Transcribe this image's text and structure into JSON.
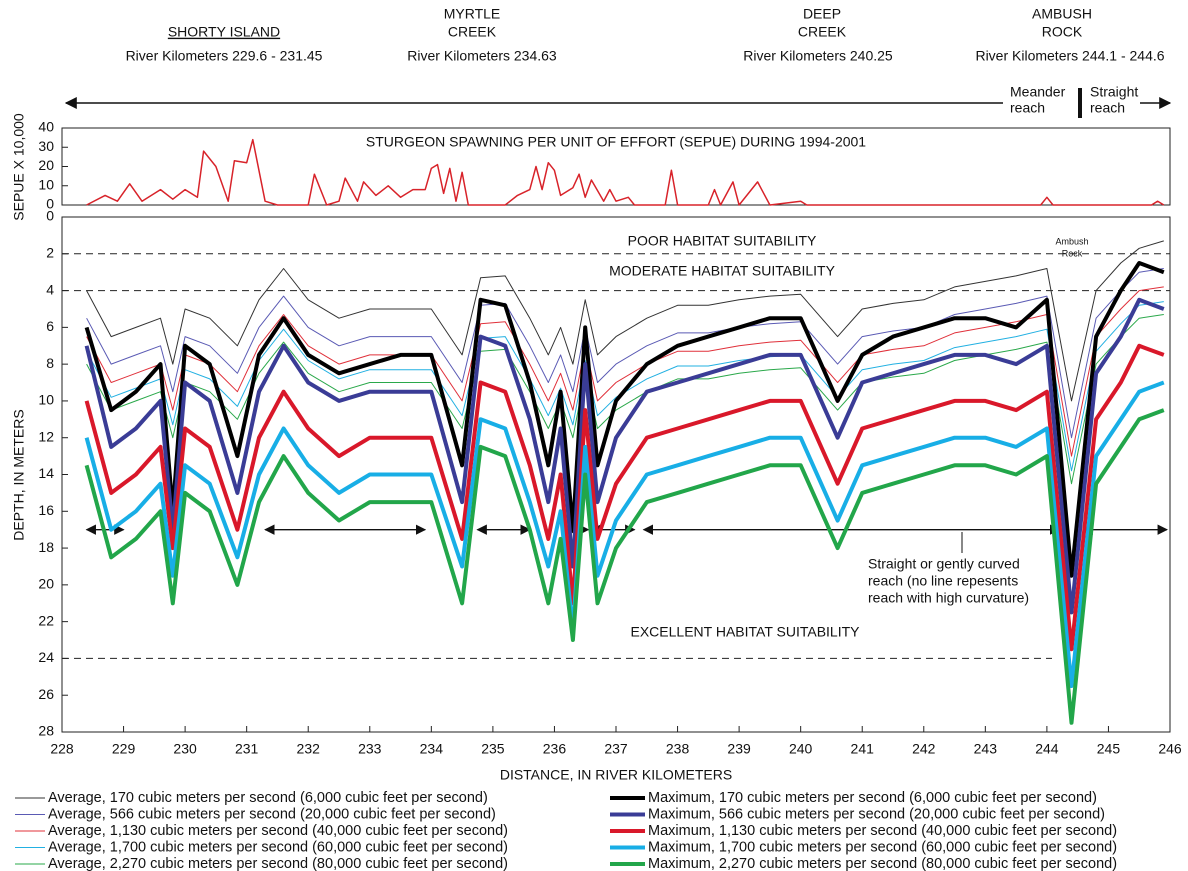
{
  "header": {
    "locations": [
      {
        "name": [
          "SHORTY ISLAND"
        ],
        "range": "River Kilometers 229.6 - 231.45"
      },
      {
        "name": [
          "MYRTLE",
          "CREEK"
        ],
        "range": "River Kilometers 234.63"
      },
      {
        "name": [
          "DEEP",
          "CREEK"
        ],
        "range": "River Kilometers 240.25"
      },
      {
        "name": [
          "AMBUSH",
          "ROCK"
        ],
        "range": "River Kilometers 244.1 - 244.6"
      }
    ],
    "meander": [
      "Meander",
      "reach"
    ],
    "straight": [
      "Straight",
      "reach"
    ]
  },
  "chart_data": [
    {
      "type": "line",
      "title": "STURGEON SPAWNING  PER UNIT OF EFFORT (SEPUE) DURING 1994-2001",
      "y_label": "SEPUE X 10,000",
      "color": "#d8232a",
      "x": [
        228.4,
        228.7,
        228.9,
        229.1,
        229.3,
        229.6,
        229.8,
        230.0,
        230.2,
        230.3,
        230.5,
        230.7,
        230.8,
        231.0,
        231.1,
        231.3,
        231.5,
        232.0,
        232.1,
        232.3,
        232.5,
        232.6,
        232.8,
        232.9,
        233.1,
        233.3,
        233.5,
        233.7,
        233.9,
        234.0,
        234.1,
        234.2,
        234.3,
        234.4,
        234.5,
        234.6,
        235.2,
        235.4,
        235.6,
        235.7,
        235.8,
        235.9,
        236.0,
        236.1,
        236.3,
        236.4,
        236.5,
        236.6,
        236.8,
        236.9,
        237.0,
        237.2,
        237.3,
        237.8,
        237.9,
        238.0,
        238.5,
        238.6,
        238.7,
        238.9,
        239.0,
        239.3,
        239.5,
        240.0,
        240.1,
        243.9,
        244.0,
        244.1,
        245.7,
        245.8,
        245.9
      ],
      "values": [
        0,
        5,
        2,
        11,
        2,
        8,
        3,
        8,
        4,
        28,
        20,
        2,
        23,
        22,
        34,
        2,
        0,
        0,
        16,
        0,
        2,
        14,
        2,
        12,
        5,
        10,
        4,
        8,
        8,
        19,
        21,
        6,
        19,
        2,
        17,
        0,
        0,
        5,
        8,
        20,
        8,
        22,
        18,
        5,
        9,
        16,
        4,
        13,
        2,
        8,
        2,
        4,
        0,
        0,
        18,
        0,
        0,
        8,
        0,
        12,
        0,
        12,
        0,
        2,
        0,
        0,
        4,
        0,
        0,
        2,
        0
      ],
      "xlim": [
        228,
        246
      ],
      "ylim": [
        0,
        40
      ],
      "yticks": [
        0,
        10,
        20,
        30,
        40
      ]
    },
    {
      "type": "line",
      "x_label": "DISTANCE, IN RIVER KILOMETERS",
      "y_label": "DEPTH, IN METERS",
      "xlim": [
        228,
        246
      ],
      "xticks": [
        228,
        229,
        230,
        231,
        232,
        233,
        234,
        235,
        236,
        237,
        238,
        239,
        240,
        241,
        242,
        243,
        244,
        245,
        246
      ],
      "ylim": [
        0,
        28
      ],
      "y_reversed": true,
      "yticks": [
        0,
        2,
        4,
        6,
        8,
        10,
        12,
        14,
        16,
        18,
        20,
        22,
        24,
        26,
        28
      ],
      "threshold_lines": [
        2,
        4,
        24
      ],
      "annotations": [
        "POOR HABITAT SUITABILITY",
        "MODERATE HABITAT SUITABILITY",
        "EXCELLENT HABITAT SUITABILITY"
      ],
      "rock_label": [
        "Ambush",
        "Rock"
      ],
      "reach_note": [
        "Straight or gently curved",
        "reach (no line repesents",
        "reach with high curvature)"
      ],
      "reach_depth": 17,
      "reaches": [
        [
          228.4,
          229.0
        ],
        [
          231.3,
          233.9
        ],
        [
          234.75,
          235.6
        ],
        [
          236.2,
          236.55
        ],
        [
          236.6,
          237.3
        ],
        [
          237.45,
          244.2
        ],
        [
          244.6,
          245.95
        ]
      ],
      "x": [
        228.4,
        228.8,
        229.2,
        229.6,
        229.8,
        230.0,
        230.4,
        230.85,
        231.2,
        231.6,
        232.0,
        232.5,
        233.0,
        233.5,
        234.0,
        234.5,
        234.8,
        235.2,
        235.6,
        235.9,
        236.1,
        236.3,
        236.5,
        236.7,
        237.0,
        237.5,
        238.0,
        238.5,
        239.0,
        239.5,
        240.0,
        240.6,
        241.0,
        241.5,
        242.0,
        242.5,
        243.0,
        243.5,
        244.0,
        244.4,
        244.8,
        245.2,
        245.5,
        245.9
      ],
      "series": [
        {
          "name": "Average, 170 cubic meters per second (6,000 cubic feet per second)",
          "color": "#333333",
          "line_width": 1,
          "values": [
            4,
            6.5,
            6,
            5.5,
            8,
            5,
            5.5,
            7,
            4.5,
            2.8,
            4.5,
            5.5,
            5,
            5,
            5,
            7.5,
            3.3,
            3.2,
            5.5,
            7.5,
            6,
            8,
            4.5,
            7.5,
            6.5,
            5.5,
            4.8,
            4.8,
            4.5,
            4.3,
            4.2,
            6.5,
            5,
            4.7,
            4.5,
            3.8,
            3.5,
            3.2,
            2.8,
            10,
            4,
            2.5,
            1.7,
            1.3
          ]
        },
        {
          "name": "Average, 566 cubic meters per second (20,000 cubic feet per second)",
          "color": "#5a5ab4",
          "line_width": 1,
          "values": [
            5.5,
            8,
            7.5,
            7,
            9.5,
            6.5,
            7,
            8.5,
            6,
            4.3,
            6,
            7,
            6.5,
            6.5,
            6.5,
            9,
            4.8,
            4.7,
            7,
            9,
            7.5,
            9.5,
            6,
            9,
            8,
            7,
            6.3,
            6.3,
            6,
            5.8,
            5.7,
            8,
            6.5,
            6.2,
            6,
            5.3,
            5,
            4.7,
            4.3,
            12,
            5.5,
            4,
            3,
            2.8
          ]
        },
        {
          "name": "Average, 1,130 cubic meters per second (40,000 cubic feet per second)",
          "color": "#e0303a",
          "line_width": 1,
          "values": [
            6.5,
            9,
            8.5,
            8,
            10.5,
            7.5,
            8,
            9.5,
            7,
            5.3,
            7,
            8,
            7.5,
            7.5,
            7.5,
            10,
            5.8,
            5.7,
            8,
            10,
            8.5,
            10.5,
            7,
            10,
            9,
            8,
            7.3,
            7.3,
            7,
            6.8,
            6.7,
            9,
            7.5,
            7.2,
            7,
            6.3,
            6,
            5.7,
            5.3,
            13,
            6.5,
            5,
            4,
            3.8
          ]
        },
        {
          "name": "Average, 1,700 cubic meters per second (60,000 cubic feet per second)",
          "color": "#22b0e2",
          "line_width": 1,
          "values": [
            7.3,
            9.8,
            9.3,
            8.8,
            11.3,
            8.3,
            8.8,
            10.3,
            7.8,
            6.1,
            7.8,
            8.8,
            8.3,
            8.3,
            8.3,
            10.8,
            6.6,
            6.5,
            8.8,
            10.8,
            9.3,
            11.3,
            7.8,
            10.8,
            9.8,
            8.8,
            8.1,
            8.1,
            7.8,
            7.6,
            7.5,
            9.8,
            8.3,
            8,
            7.8,
            7.1,
            6.8,
            6.5,
            6.1,
            13.8,
            7.3,
            5.8,
            4.8,
            4.6
          ]
        },
        {
          "name": "Average, 2,270 cubic meters per second (80,000 cubic feet per second)",
          "color": "#2aa84a",
          "line_width": 1,
          "values": [
            8,
            10.5,
            10,
            9.5,
            12,
            9,
            9.5,
            11,
            8.5,
            6.8,
            8.5,
            9.5,
            9,
            9,
            9,
            11.5,
            7.3,
            7.2,
            9.5,
            11.5,
            10,
            12,
            8.5,
            11.5,
            10.5,
            9.5,
            8.8,
            8.8,
            8.5,
            8.3,
            8.2,
            10.5,
            9,
            8.7,
            8.5,
            7.8,
            7.5,
            7.2,
            6.8,
            14.5,
            8,
            6.5,
            5.5,
            5.3
          ]
        },
        {
          "name": "Maximum, 170 cubic meters per second (6,000 cubic feet per second)",
          "color": "#000000",
          "line_width": 4,
          "values": [
            6,
            10.5,
            9.5,
            8,
            16,
            7,
            8,
            13,
            7.5,
            5.5,
            7.5,
            8.5,
            8,
            7.5,
            7.5,
            13.5,
            4.5,
            4.8,
            9,
            13.5,
            9.5,
            17,
            6,
            13.5,
            10,
            8,
            7,
            6.5,
            6,
            5.5,
            5.5,
            10,
            7.5,
            6.5,
            6,
            5.5,
            5.5,
            6,
            4.5,
            19.5,
            6.5,
            4,
            2.5,
            3
          ]
        },
        {
          "name": "Maximum, 566 cubic meters per second (20,000 cubic feet per second)",
          "color": "#3a3c96",
          "line_width": 4,
          "values": [
            7,
            12.5,
            11.5,
            10,
            17,
            9,
            10,
            15,
            9.5,
            7,
            9,
            10,
            9.5,
            9.5,
            9.5,
            15.5,
            6.5,
            7,
            11,
            15.5,
            11.5,
            19,
            8,
            15.5,
            12,
            9.5,
            9,
            8.5,
            8,
            7.5,
            7.5,
            12,
            9,
            8.5,
            8,
            7.5,
            7.5,
            8,
            7,
            21.5,
            8.5,
            6.5,
            4.5,
            5
          ]
        },
        {
          "name": "Maximum, 1,130 cubic meters per second (40,000 cubic feet per second)",
          "color": "#d9182a",
          "line_width": 4,
          "values": [
            10,
            15,
            14,
            12.5,
            18,
            11.5,
            12.5,
            17,
            12,
            9.5,
            11.5,
            13,
            12,
            12,
            12,
            17.5,
            9,
            9.5,
            13.5,
            17.5,
            14,
            21,
            10.5,
            17.5,
            14.5,
            12,
            11.5,
            11,
            10.5,
            10,
            10,
            14.5,
            11.5,
            11,
            10.5,
            10,
            10,
            10.5,
            9.5,
            23.5,
            11,
            9,
            7,
            7.5
          ]
        },
        {
          "name": "Maximum, 1,700 cubic meters per second (60,000 cubic feet per second)",
          "color": "#18aee6",
          "line_width": 4,
          "values": [
            12,
            17,
            16,
            14.5,
            19.5,
            13.5,
            14.5,
            18.5,
            14,
            11.5,
            13.5,
            15,
            14,
            14,
            14,
            19,
            11,
            11.5,
            15.5,
            19,
            16,
            22.5,
            12.5,
            19.5,
            16.5,
            14,
            13.5,
            13,
            12.5,
            12,
            12,
            16.5,
            13.5,
            13,
            12.5,
            12,
            12,
            12.5,
            11.5,
            25.5,
            13,
            11,
            9.5,
            9
          ]
        },
        {
          "name": "Maximum, 2,270 cubic meters per second (80,000 cubic feet per second)",
          "color": "#22a64a",
          "line_width": 4,
          "values": [
            13.5,
            18.5,
            17.5,
            16,
            21,
            15,
            16,
            20,
            15.5,
            13,
            15,
            16.5,
            15.5,
            15.5,
            15.5,
            21,
            12.5,
            13,
            17,
            21,
            17.5,
            23,
            14,
            21,
            18,
            15.5,
            15,
            14.5,
            14,
            13.5,
            13.5,
            18,
            15,
            14.5,
            14,
            13.5,
            13.5,
            14,
            13,
            27.5,
            14.5,
            12.5,
            11,
            10.5
          ]
        }
      ]
    }
  ]
}
